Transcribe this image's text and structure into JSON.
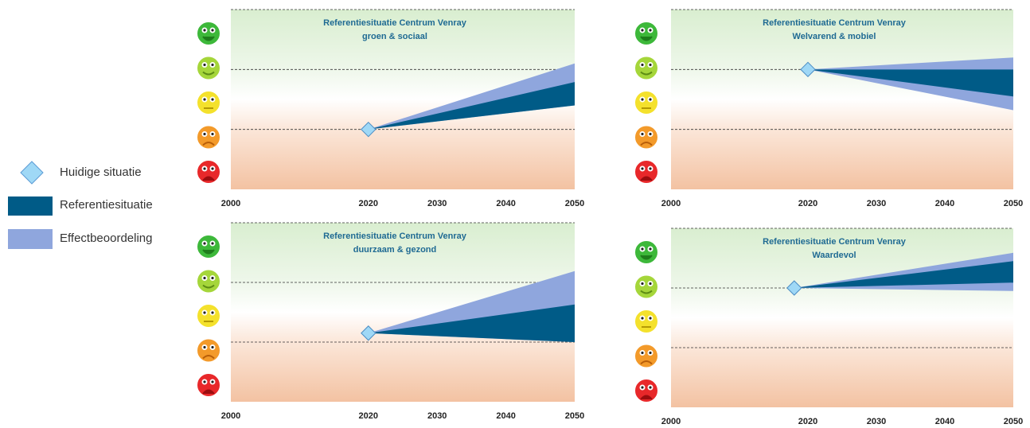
{
  "legend": [
    {
      "name": "Huidige situatie",
      "color": "#9fd8f6"
    },
    {
      "name": "Referentiesituatie",
      "color": "#005b87"
    },
    {
      "name": "Effectbeoordeling",
      "color": "#8fa6dd"
    }
  ],
  "chart_data": [
    {
      "type": "fan",
      "title": [
        "Referentiesituatie Centrum Venray",
        "groen & sociaal"
      ],
      "x": [
        2020,
        2050
      ],
      "current": 1,
      "reference": {
        "low": [
          1,
          1.4
        ],
        "high": [
          1,
          1.79
        ]
      },
      "effect": {
        "low": [
          1,
          1.4
        ],
        "high": [
          1,
          2.1
        ]
      },
      "xlim": [
        2000,
        2050
      ],
      "xticks": [
        2000,
        2020,
        2030,
        2040,
        2050
      ],
      "ylim": [
        0,
        3
      ],
      "yticks": [
        1,
        2,
        3
      ]
    },
    {
      "type": "fan",
      "title": [
        "Referentiesituatie Centrum Venray",
        "Welvarend & mobiel"
      ],
      "x": [
        2020,
        2050
      ],
      "current": 2,
      "reference": {
        "low": [
          2,
          1.55
        ],
        "high": [
          2,
          2.0
        ]
      },
      "effect": {
        "low": [
          2,
          1.32
        ],
        "high": [
          2,
          2.2
        ]
      },
      "xlim": [
        2000,
        2050
      ],
      "xticks": [
        2000,
        2020,
        2030,
        2040,
        2050
      ],
      "ylim": [
        0,
        3
      ],
      "yticks": [
        1,
        2,
        3
      ]
    },
    {
      "type": "fan",
      "title": [
        "Referentiesituatie Centrum Venray",
        "duurzaam & gezond"
      ],
      "x": [
        2020,
        2050
      ],
      "current": 1.15,
      "reference": {
        "low": [
          1.15,
          1.0
        ],
        "high": [
          1.15,
          1.63
        ]
      },
      "effect": {
        "low": [
          1.15,
          1.0
        ],
        "high": [
          1.15,
          2.19
        ]
      },
      "xlim": [
        2000,
        2050
      ],
      "xticks": [
        2000,
        2020,
        2030,
        2040,
        2050
      ],
      "ylim": [
        0,
        3
      ],
      "yticks": [
        1,
        2,
        3
      ]
    },
    {
      "type": "fan",
      "title": [
        "Referentiesituatie Centrum Venray",
        "Waardevol"
      ],
      "x": [
        2018,
        2050
      ],
      "current": 2,
      "reference": {
        "low": [
          2,
          2.09
        ],
        "high": [
          2,
          2.45
        ]
      },
      "effect": {
        "low": [
          2,
          1.95
        ],
        "high": [
          2,
          2.59
        ]
      },
      "xlim": [
        2000,
        2050
      ],
      "xticks": [
        2000,
        2020,
        2030,
        2040,
        2050
      ],
      "ylim": [
        0,
        3
      ],
      "yticks": [
        1,
        2,
        3
      ]
    }
  ]
}
